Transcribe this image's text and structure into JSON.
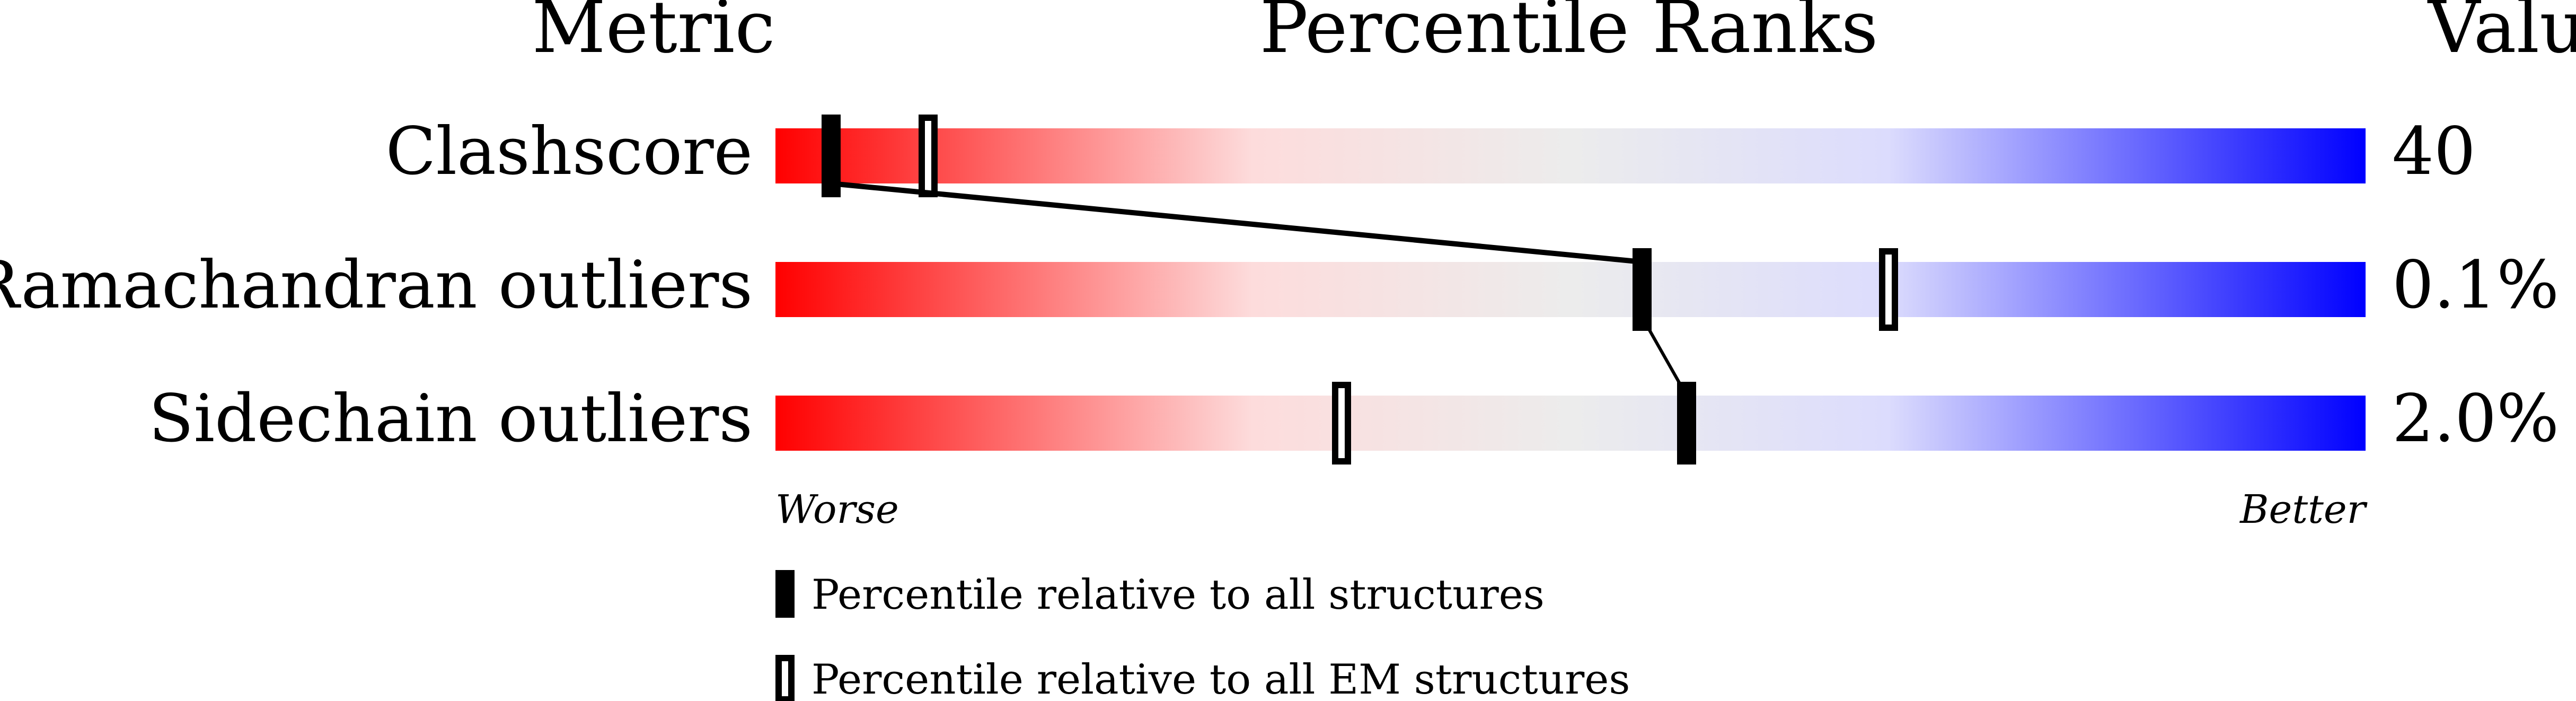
{
  "chart_data": {
    "type": "percentile-slider",
    "headers": {
      "metric": "Metric",
      "ranks": "Percentile Ranks",
      "value": "Value"
    },
    "xlim": [
      0,
      100
    ],
    "axis_labels": {
      "left": "Worse",
      "right": "Better"
    },
    "gradient_colors": [
      "#ff0000",
      "#eeeeee",
      "#0000ff"
    ],
    "rows": [
      {
        "metric": "Clashscore",
        "value": "40",
        "percentile_all": 3.5,
        "percentile_em": 9.6
      },
      {
        "metric": "Ramachandran outliers",
        "value": "0.1%",
        "percentile_all": 54.5,
        "percentile_em": 70.0
      },
      {
        "metric": "Sidechain outliers",
        "value": "2.0%",
        "percentile_all": 57.3,
        "percentile_em": 35.6
      }
    ],
    "legend": [
      {
        "marker": "filled",
        "label": "Percentile relative to all structures"
      },
      {
        "marker": "open",
        "label": "Percentile relative to all EM structures"
      }
    ]
  }
}
